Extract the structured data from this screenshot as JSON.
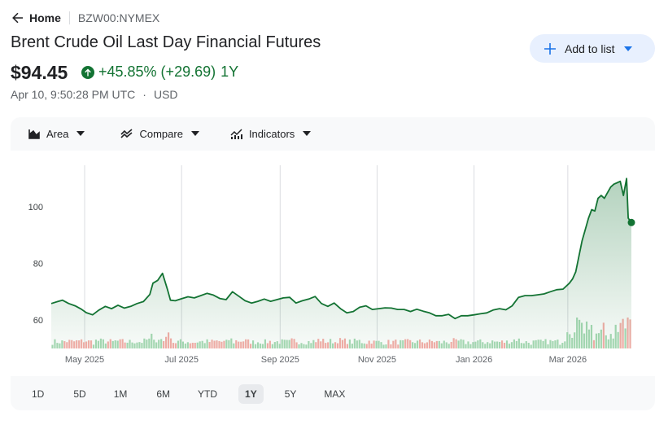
{
  "breadcrumb": {
    "home_label": "Home",
    "ticker": "BZW00:NYMEX"
  },
  "instrument": {
    "name": "Brent Crude Oil Last Day Financial Futures",
    "price": "$94.45",
    "change_text": "+45.85% (+29.69)",
    "period": "1Y",
    "timestamp": "Apr 10, 9:50:28 PM UTC",
    "dot": "·",
    "currency": "USD"
  },
  "actions": {
    "add_to_list": "Add to list"
  },
  "toolbar": {
    "area": "Area",
    "compare": "Compare",
    "indicators": "Indicators"
  },
  "ranges": [
    "1D",
    "5D",
    "1M",
    "6M",
    "YTD",
    "1Y",
    "5Y",
    "MAX"
  ],
  "selected_range": "1Y",
  "colors": {
    "line": "#137333",
    "positive": "#137333",
    "volume_up": "#a8dab5",
    "volume_down": "#f6aea9",
    "accent_bg": "#e8f0fe"
  },
  "icons": [
    "arrow-back-icon",
    "arrow-up-circle-icon",
    "plus-icon",
    "caret-down-icon",
    "area-chart-icon",
    "compare-icon",
    "indicators-icon"
  ],
  "chart_data": {
    "type": "area",
    "xlabel": "",
    "ylabel": "",
    "x_tick_labels": [
      "May 2025",
      "Jul 2025",
      "Sep 2025",
      "Nov 2025",
      "Jan 2026",
      "Mar 2026"
    ],
    "x_range": [
      "2025-04-10",
      "2026-04-10"
    ],
    "y_ticks": [
      60,
      80,
      100
    ],
    "ylim": [
      52,
      114
    ],
    "grid": "vertical",
    "x": [
      "2025-04-10",
      "2025-04-14",
      "2025-04-17",
      "2025-04-21",
      "2025-04-25",
      "2025-04-29",
      "2025-05-02",
      "2025-05-06",
      "2025-05-10",
      "2025-05-14",
      "2025-05-18",
      "2025-05-22",
      "2025-05-26",
      "2025-05-30",
      "2025-06-03",
      "2025-06-07",
      "2025-06-11",
      "2025-06-13",
      "2025-06-16",
      "2025-06-19",
      "2025-06-22",
      "2025-06-24",
      "2025-06-27",
      "2025-07-01",
      "2025-07-05",
      "2025-07-09",
      "2025-07-13",
      "2025-07-17",
      "2025-07-21",
      "2025-07-25",
      "2025-07-29",
      "2025-08-02",
      "2025-08-06",
      "2025-08-10",
      "2025-08-14",
      "2025-08-18",
      "2025-08-22",
      "2025-08-26",
      "2025-08-30",
      "2025-09-03",
      "2025-09-07",
      "2025-09-11",
      "2025-09-15",
      "2025-09-19",
      "2025-09-23",
      "2025-09-27",
      "2025-10-01",
      "2025-10-05",
      "2025-10-09",
      "2025-10-13",
      "2025-10-17",
      "2025-10-21",
      "2025-10-25",
      "2025-10-29",
      "2025-11-02",
      "2025-11-06",
      "2025-11-10",
      "2025-11-14",
      "2025-11-18",
      "2025-11-22",
      "2025-11-26",
      "2025-11-30",
      "2025-12-04",
      "2025-12-08",
      "2025-12-12",
      "2025-12-16",
      "2025-12-20",
      "2025-12-24",
      "2025-12-28",
      "2026-01-01",
      "2026-01-05",
      "2026-01-09",
      "2026-01-13",
      "2026-01-17",
      "2026-01-21",
      "2026-01-25",
      "2026-01-29",
      "2026-02-02",
      "2026-02-06",
      "2026-02-10",
      "2026-02-14",
      "2026-02-18",
      "2026-02-22",
      "2026-02-26",
      "2026-03-02",
      "2026-03-04",
      "2026-03-06",
      "2026-03-08",
      "2026-03-10",
      "2026-03-12",
      "2026-03-14",
      "2026-03-16",
      "2026-03-18",
      "2026-03-20",
      "2026-03-22",
      "2026-03-24",
      "2026-03-26",
      "2026-03-28",
      "2026-03-30",
      "2026-04-01",
      "2026-04-03",
      "2026-04-05",
      "2026-04-07",
      "2026-04-08",
      "2026-04-10"
    ],
    "series": [
      {
        "values": [
          65.8,
          66.5,
          67.0,
          65.8,
          65.0,
          63.8,
          62.6,
          61.8,
          63.5,
          64.8,
          64.0,
          65.2,
          64.2,
          64.8,
          65.8,
          66.5,
          69.0,
          73.0,
          74.0,
          76.5,
          71.0,
          67.0,
          66.8,
          67.5,
          68.2,
          67.8,
          68.6,
          69.4,
          68.8,
          67.6,
          67.2,
          70.0,
          68.4,
          66.8,
          66.0,
          66.6,
          67.4,
          66.6,
          67.2,
          67.8,
          68.0,
          66.0,
          66.8,
          67.4,
          68.3,
          65.8,
          64.8,
          66.0,
          64.0,
          62.5,
          63.0,
          64.5,
          65.0,
          63.7,
          64.0,
          64.3,
          64.2,
          63.7,
          63.7,
          63.0,
          63.8,
          63.1,
          62.5,
          61.5,
          61.5,
          62.0,
          60.5,
          61.5,
          61.5,
          61.8,
          62.2,
          62.5,
          63.5,
          64.0,
          63.6,
          65.0,
          68.0,
          68.6,
          68.6,
          68.9,
          69.2,
          70.0,
          70.7,
          70.9,
          73.0,
          74.5,
          77.0,
          82.5,
          88.0,
          92.0,
          96.0,
          99.0,
          98.5,
          103.0,
          104.0,
          103.0,
          105.0,
          107.0,
          108.0,
          108.5,
          109.0,
          104.0,
          110.0,
          96.0,
          94.45
        ]
      }
    ],
    "volume": {
      "count": 240,
      "note_values": "relative"
    },
    "last_value": 94.45
  }
}
